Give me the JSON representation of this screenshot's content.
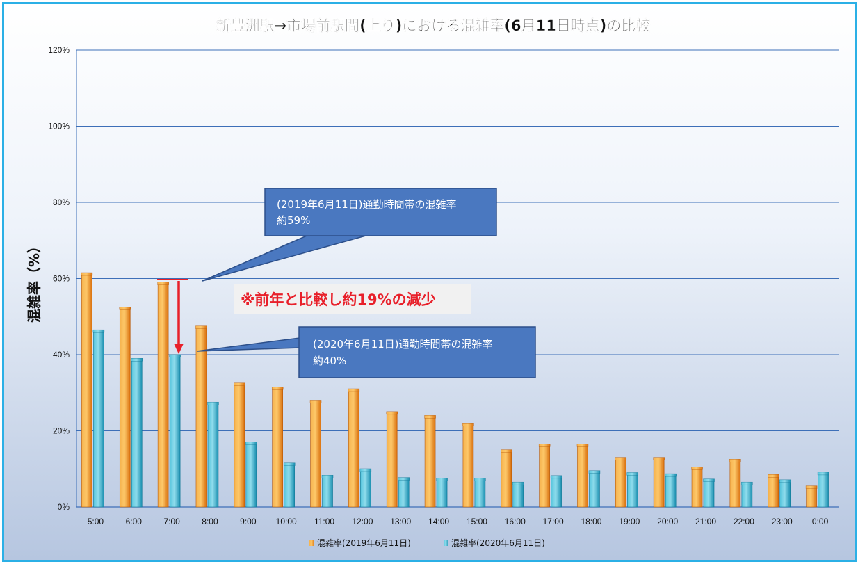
{
  "chart_data": {
    "type": "bar",
    "title": "新豊洲駅→市場前駅間(上り)における混雑率(6月11日時点)の比較",
    "ylabel": "混雑率（%）",
    "xlabel": "",
    "ylim": [
      0,
      120
    ],
    "yticks": [
      "0%",
      "20%",
      "40%",
      "60%",
      "80%",
      "100%",
      "120%"
    ],
    "categories": [
      "5:00",
      "6:00",
      "7:00",
      "8:00",
      "9:00",
      "10:00",
      "11:00",
      "12:00",
      "13:00",
      "14:00",
      "15:00",
      "16:00",
      "17:00",
      "18:00",
      "19:00",
      "20:00",
      "21:00",
      "22:00",
      "23:00",
      "0:00"
    ],
    "series": [
      {
        "name": "混雑率(2019年6月11日)",
        "color": "#f08a1c",
        "values": [
          61,
          52,
          58.5,
          47,
          32,
          31,
          27.5,
          30.5,
          24.5,
          23.5,
          21.5,
          14.5,
          16,
          16,
          12.5,
          12.5,
          10,
          12,
          8,
          5
        ]
      },
      {
        "name": "混雑率(2020年6月11日)",
        "color": "#2aa9c8",
        "values": [
          46,
          38.5,
          39.5,
          27,
          16.5,
          11,
          7.8,
          9.5,
          7.2,
          7,
          7,
          6,
          7.7,
          9,
          8.5,
          8.2,
          6.8,
          6,
          6.6,
          8.6
        ]
      }
    ],
    "grid": true,
    "legend_position": "bottom",
    "annotations": {
      "callout_2019": {
        "line1": "(2019年6月11日)通勤時間帯の混雑率",
        "line2": "約59%"
      },
      "callout_2020": {
        "line1": "(2020年6月11日)通勤時間帯の混雑率",
        "line2": "約40%"
      },
      "highlight": "※前年と比較し約19%の減少",
      "highlight_color": "#e8202a"
    }
  }
}
